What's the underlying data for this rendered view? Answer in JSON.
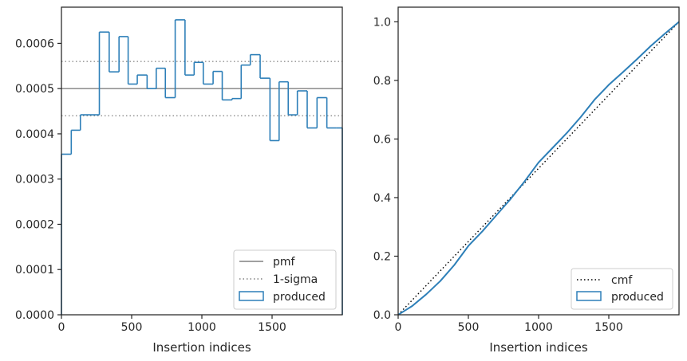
{
  "chart_data": [
    {
      "type": "step",
      "xlabel": "Insertion indices",
      "ylabel": "",
      "xlim": [
        0,
        2000
      ],
      "ylim": [
        0,
        0.00068
      ],
      "xticks": [
        0,
        500,
        1000,
        1500
      ],
      "xtick_labels": [
        "0",
        "500",
        "1000",
        "1500"
      ],
      "yticks": [
        0,
        0.0001,
        0.0002,
        0.0003,
        0.0004,
        0.0005,
        0.0006
      ],
      "ytick_labels": [
        "0.0000",
        "0.0001",
        "0.0002",
        "0.0003",
        "0.0004",
        "0.0005",
        "0.0006"
      ],
      "legend_position": "lower-right",
      "legend": [
        "pmf",
        "1-sigma",
        "produced"
      ],
      "pmf_line": {
        "name": "pmf",
        "y": 0.0005,
        "color": "#808080",
        "style": "solid"
      },
      "sigma_lines": {
        "name": "1-sigma",
        "y": [
          0.00056,
          0.00044
        ],
        "color": "#808080",
        "style": "dotted"
      },
      "histogram": {
        "name": "produced",
        "color": "#2d7fb8",
        "bin_edges": [
          0,
          70,
          135,
          270,
          340,
          410,
          475,
          540,
          610,
          675,
          740,
          810,
          880,
          945,
          1010,
          1080,
          1145,
          1215,
          1280,
          1345,
          1415,
          1485,
          1550,
          1615,
          1680,
          1750,
          1820,
          1890,
          1955,
          2000
        ],
        "values": [
          0.000355,
          0.000408,
          0.000442,
          0.000625,
          0.000537,
          0.000615,
          0.00051,
          0.00053,
          0.0005,
          0.000545,
          0.00048,
          0.000652,
          0.00053,
          0.000558,
          0.00051,
          0.000538,
          0.000475,
          0.000478,
          0.000552,
          0.000575,
          0.000523,
          0.000385,
          0.000515,
          0.000442,
          0.000495,
          0.000413,
          0.00048,
          0.000413,
          0.000413
        ]
      }
    },
    {
      "type": "line",
      "xlabel": "Insertion indices",
      "ylabel": "",
      "xlim": [
        0,
        2000
      ],
      "ylim": [
        0,
        1.05
      ],
      "xticks": [
        0,
        500,
        1000,
        1500
      ],
      "xtick_labels": [
        "0",
        "500",
        "1000",
        "1500"
      ],
      "yticks": [
        0,
        0.2,
        0.4,
        0.6,
        0.8,
        1.0
      ],
      "ytick_labels": [
        "0.0",
        "0.2",
        "0.4",
        "0.6",
        "0.8",
        "1.0"
      ],
      "legend_position": "lower-right",
      "legend": [
        "cmf",
        "produced"
      ],
      "series": [
        {
          "name": "cmf",
          "color": "#000000",
          "style": "dotted",
          "x": [
            0,
            2000
          ],
          "y": [
            0,
            1.0
          ]
        },
        {
          "name": "produced",
          "color": "#2d7fb8",
          "style": "solid",
          "x": [
            0,
            100,
            200,
            300,
            400,
            500,
            600,
            700,
            800,
            900,
            1000,
            1100,
            1200,
            1300,
            1400,
            1500,
            1600,
            1700,
            1800,
            1900,
            2000
          ],
          "y": [
            0,
            0.03,
            0.07,
            0.115,
            0.17,
            0.235,
            0.285,
            0.34,
            0.395,
            0.455,
            0.52,
            0.57,
            0.62,
            0.675,
            0.735,
            0.785,
            0.828,
            0.872,
            0.918,
            0.96,
            1.0
          ]
        }
      ]
    }
  ]
}
